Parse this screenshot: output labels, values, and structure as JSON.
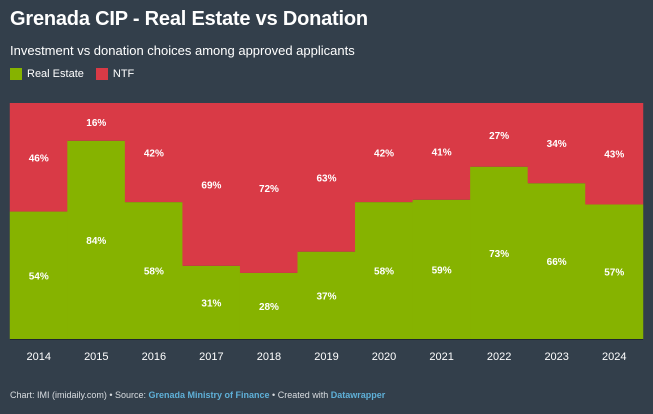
{
  "title": "Grenada CIP - Real Estate vs Donation",
  "subtitle": "Investment vs donation choices among approved applicants",
  "colors": {
    "real_estate": "#86b300",
    "ntf": "#d93a46",
    "background": "#333f4b",
    "link": "#5fb0d8"
  },
  "footer": {
    "chart_credit": "Chart: IMI (imidaily.com) • Source: ",
    "source": "Grenada Ministry of Finance",
    "created_with": " • Created with ",
    "tool": "Datawrapper"
  },
  "chart_data": {
    "type": "bar",
    "stacked": true,
    "normalized_to": 100,
    "unit": "%",
    "categories": [
      "2014",
      "2015",
      "2016",
      "2017",
      "2018",
      "2019",
      "2020",
      "2021",
      "2022",
      "2023",
      "2024"
    ],
    "series": [
      {
        "name": "Real Estate",
        "values": [
          54,
          84,
          58,
          31,
          28,
          37,
          58,
          59,
          73,
          66,
          57
        ]
      },
      {
        "name": "NTF",
        "values": [
          46,
          16,
          42,
          69,
          72,
          63,
          42,
          41,
          27,
          34,
          43
        ]
      }
    ],
    "ylim": [
      0,
      100
    ],
    "legend": "top-left",
    "grid": false
  }
}
